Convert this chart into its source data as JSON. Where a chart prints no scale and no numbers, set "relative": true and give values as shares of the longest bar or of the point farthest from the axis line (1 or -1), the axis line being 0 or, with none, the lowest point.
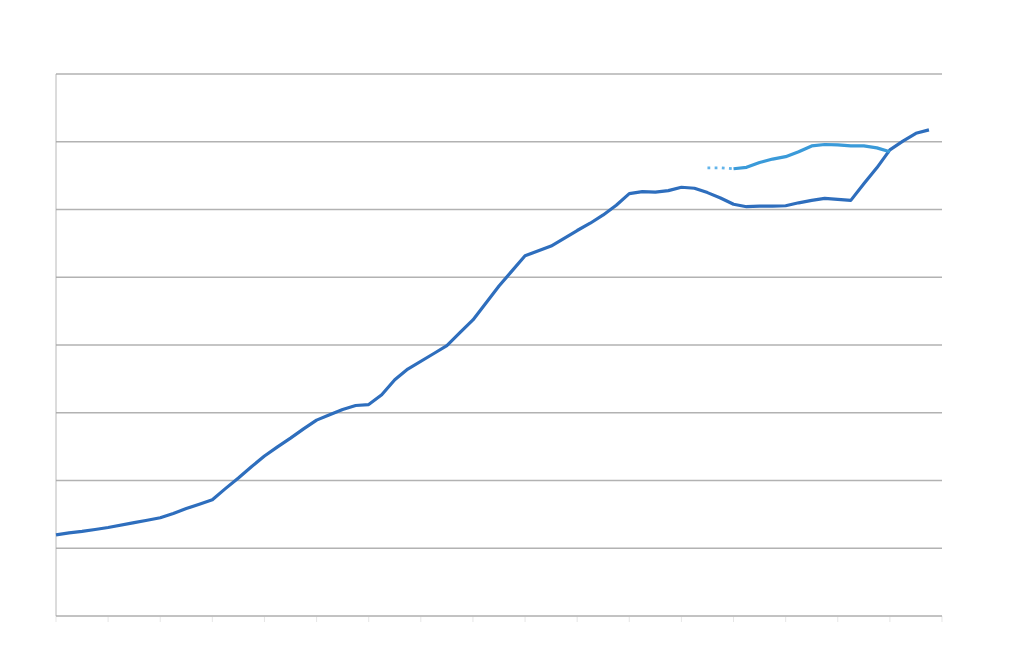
{
  "chart_data": {
    "type": "line",
    "relative": true,
    "grid": "y",
    "line_style": "solid",
    "categories": [
      null,
      null,
      null,
      null,
      null,
      null,
      null,
      null,
      null,
      null,
      null,
      null,
      null,
      null,
      null,
      null,
      null,
      null,
      null,
      null,
      null,
      null,
      null,
      null,
      null,
      null,
      null,
      null,
      null,
      null,
      null,
      null,
      null,
      null,
      null,
      null,
      null,
      null,
      null,
      null,
      null,
      null,
      null,
      null,
      null,
      null,
      null,
      null,
      null,
      null,
      null,
      null,
      null,
      null,
      null,
      null,
      null,
      null,
      null,
      null,
      null,
      null,
      null,
      null,
      null,
      null,
      null,
      null
    ],
    "series": [
      {
        "color": "#2e6ebd",
        "values": [
          0.167,
          0.171,
          0.174,
          0.178,
          0.182,
          0.187,
          0.192,
          0.197,
          0.202,
          0.211,
          0.221,
          0.23,
          0.239,
          0.262,
          0.284,
          0.307,
          0.329,
          0.348,
          0.366,
          0.385,
          0.403,
          0.414,
          0.425,
          0.433,
          0.435,
          0.455,
          0.486,
          0.508,
          0.524,
          0.54,
          0.556,
          0.583,
          0.609,
          0.644,
          0.679,
          0.71,
          0.741,
          0.751,
          0.761,
          0.777,
          0.793,
          0.808,
          0.825,
          0.845,
          0.869,
          0.873,
          0.872,
          0.875,
          0.882,
          0.88,
          0.871,
          0.86,
          0.847,
          0.842,
          0.843,
          0.843,
          0.844,
          0.85,
          0.855,
          0.859,
          0.857,
          0.855,
          0.889,
          0.922,
          0.959,
          0.977,
          0.993,
          1.0
        ]
      },
      {
        "color": "#62b4ea",
        "line_style": "dotted",
        "values": [
          null,
          null,
          null,
          null,
          null,
          null,
          null,
          null,
          null,
          null,
          null,
          null,
          null,
          null,
          null,
          null,
          null,
          null,
          null,
          null,
          null,
          null,
          null,
          null,
          null,
          null,
          null,
          null,
          null,
          null,
          null,
          null,
          null,
          null,
          null,
          null,
          null,
          null,
          null,
          null,
          null,
          null,
          null,
          null,
          null,
          null,
          null,
          null,
          null,
          null,
          0.922,
          0.922,
          0.92,
          null,
          null,
          null,
          null,
          null,
          null,
          null,
          null,
          null,
          null,
          null,
          null,
          null,
          null,
          null
        ]
      },
      {
        "color": "#3a9ad9",
        "values": [
          null,
          null,
          null,
          null,
          null,
          null,
          null,
          null,
          null,
          null,
          null,
          null,
          null,
          null,
          null,
          null,
          null,
          null,
          null,
          null,
          null,
          null,
          null,
          null,
          null,
          null,
          null,
          null,
          null,
          null,
          null,
          null,
          null,
          null,
          null,
          null,
          null,
          null,
          null,
          null,
          null,
          null,
          null,
          null,
          null,
          null,
          null,
          null,
          null,
          null,
          null,
          null,
          0.92,
          0.923,
          0.933,
          0.94,
          0.945,
          0.955,
          0.967,
          0.97,
          0.969,
          0.967,
          0.967,
          0.963,
          0.955,
          null,
          null,
          null
        ]
      }
    ]
  }
}
